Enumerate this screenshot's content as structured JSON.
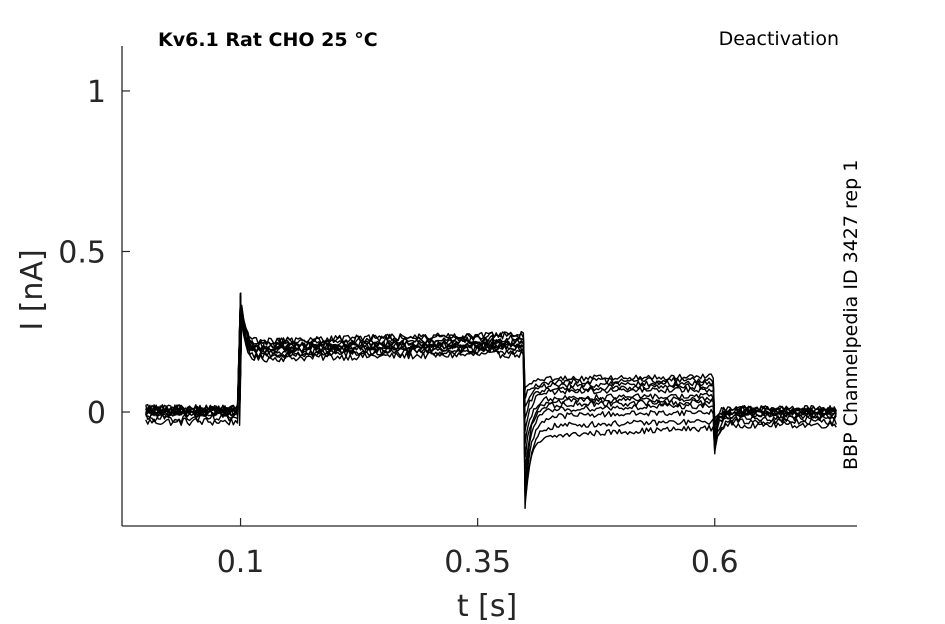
{
  "title_left": "Kv6.1  Rat  CHO  25 °C",
  "title_right": "Deactivation",
  "side_note": "BBP Channelpedia ID 3427 rep 1",
  "chart_data": {
    "type": "line",
    "title": "Kv6.1  Rat  CHO  25 °C",
    "subtitle": "Deactivation",
    "xlabel": "t [s]",
    "ylabel": "I [nA]",
    "xlim": [
      -0.025,
      0.75
    ],
    "ylim": [
      -0.355,
      1.14
    ],
    "xticks": [
      0.1,
      0.35,
      0.6
    ],
    "xtick_labels": [
      "0.1",
      "0.35",
      "0.6"
    ],
    "yticks": [
      0,
      0.5,
      1
    ],
    "ytick_labels": [
      "0",
      "0.5",
      "1"
    ],
    "grid": false,
    "line_color": "#000000",
    "axis_color": "#262626",
    "protocol": {
      "baseline_end": 0.1,
      "step_end": 0.4,
      "tail_end": 0.6,
      "sweep_end": 0.73
    },
    "series": [
      {
        "baseline": -0.03,
        "step_peak": 0.31,
        "step_start": 0.16,
        "step_end": 0.18,
        "tail_dip": -0.25,
        "tail_start": -0.09,
        "tail_end": -0.05,
        "post_dip": -0.12,
        "post_level": -0.04
      },
      {
        "baseline": -0.01,
        "step_peak": 0.33,
        "step_start": 0.17,
        "step_end": 0.19,
        "tail_dip": -0.3,
        "tail_start": -0.05,
        "tail_end": -0.03,
        "post_dip": -0.13,
        "post_level": -0.03
      },
      {
        "baseline": -0.02,
        "step_peak": 0.34,
        "step_start": 0.17,
        "step_end": 0.2,
        "tail_dip": -0.26,
        "tail_start": -0.02,
        "tail_end": 0.0,
        "post_dip": -0.11,
        "post_level": -0.02
      },
      {
        "baseline": 0.0,
        "step_peak": 0.35,
        "step_start": 0.18,
        "step_end": 0.2,
        "tail_dip": -0.22,
        "tail_start": 0.0,
        "tail_end": 0.02,
        "post_dip": -0.1,
        "post_level": -0.01
      },
      {
        "baseline": 0.0,
        "step_peak": 0.35,
        "step_start": 0.18,
        "step_end": 0.21,
        "tail_dip": -0.18,
        "tail_start": 0.02,
        "tail_end": 0.03,
        "post_dip": -0.09,
        "post_level": -0.01
      },
      {
        "baseline": 0.01,
        "step_peak": 0.36,
        "step_start": 0.19,
        "step_end": 0.21,
        "tail_dip": -0.14,
        "tail_start": 0.03,
        "tail_end": 0.04,
        "post_dip": -0.08,
        "post_level": 0.0
      },
      {
        "baseline": 0.01,
        "step_peak": 0.36,
        "step_start": 0.19,
        "step_end": 0.21,
        "tail_dip": -0.1,
        "tail_start": 0.04,
        "tail_end": 0.05,
        "post_dip": -0.07,
        "post_level": 0.0
      },
      {
        "baseline": 0.0,
        "step_peak": 0.36,
        "step_start": 0.19,
        "step_end": 0.22,
        "tail_dip": -0.06,
        "tail_start": 0.06,
        "tail_end": 0.07,
        "post_dip": -0.06,
        "post_level": 0.0
      },
      {
        "baseline": 0.01,
        "step_peak": 0.37,
        "step_start": 0.2,
        "step_end": 0.22,
        "tail_dip": -0.02,
        "tail_start": 0.07,
        "tail_end": 0.08,
        "post_dip": -0.05,
        "post_level": 0.0
      },
      {
        "baseline": 0.0,
        "step_peak": 0.37,
        "step_start": 0.2,
        "step_end": 0.23,
        "tail_dip": 0.02,
        "tail_start": 0.08,
        "tail_end": 0.09,
        "post_dip": -0.04,
        "post_level": 0.01
      },
      {
        "baseline": 0.01,
        "step_peak": 0.37,
        "step_start": 0.21,
        "step_end": 0.24,
        "tail_dip": 0.05,
        "tail_start": 0.09,
        "tail_end": 0.1,
        "post_dip": -0.04,
        "post_level": 0.01
      },
      {
        "baseline": 0.0,
        "step_peak": 0.37,
        "step_start": 0.21,
        "step_end": 0.24,
        "tail_dip": 0.07,
        "tail_start": 0.1,
        "tail_end": 0.11,
        "post_dip": -0.03,
        "post_level": 0.01
      }
    ]
  }
}
